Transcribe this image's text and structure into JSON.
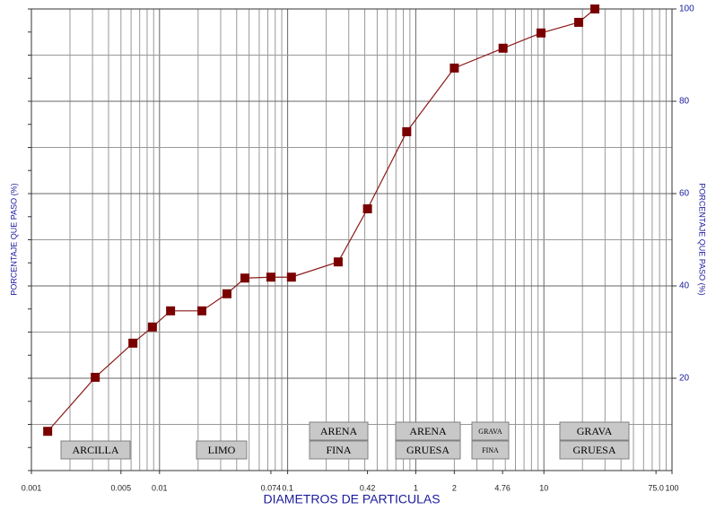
{
  "chart_data": {
    "type": "line",
    "xscale": "log",
    "x_label": "DIAMETROS DE PARTICULAS",
    "y_label": "PORCENTAJE QUE PASO (%)",
    "y2_label": "PORCENTAJE QUE PASO (%)",
    "x": [
      0.00134,
      0.00315,
      0.0062,
      0.0088,
      0.0122,
      0.0214,
      0.0336,
      0.0464,
      0.074,
      0.107,
      0.248,
      0.42,
      0.85,
      2.0,
      4.8,
      9.5,
      18.7,
      25
    ],
    "series": [
      {
        "color": "#8b1a1a",
        "values": [
          8.5,
          20.2,
          27.6,
          31.1,
          34.6,
          34.6,
          38.3,
          41.7,
          41.9,
          41.9,
          45.2,
          56.7,
          73.4,
          87.2,
          91.5,
          94.8,
          97.1,
          100
        ]
      }
    ],
    "xlim": [
      0.001,
      100
    ],
    "xticks": [
      0.001,
      0.005,
      0.01,
      0.074,
      0.1,
      0.42,
      1,
      2,
      4.76,
      10,
      {
        "value": 75,
        "label": "75.0"
      },
      100
    ],
    "ylim": [
      0,
      100
    ],
    "yticks": [
      20,
      40,
      60,
      80,
      100
    ],
    "grid": true,
    "annotations": [
      [
        "ARCILLA"
      ],
      [
        "LIMO"
      ],
      [
        "ARENA",
        "FINA"
      ],
      [
        "ARENA",
        "GRUESA"
      ],
      [
        "GRAVA",
        "FINA"
      ],
      [
        "GRAVA",
        "GRUESA"
      ]
    ]
  }
}
